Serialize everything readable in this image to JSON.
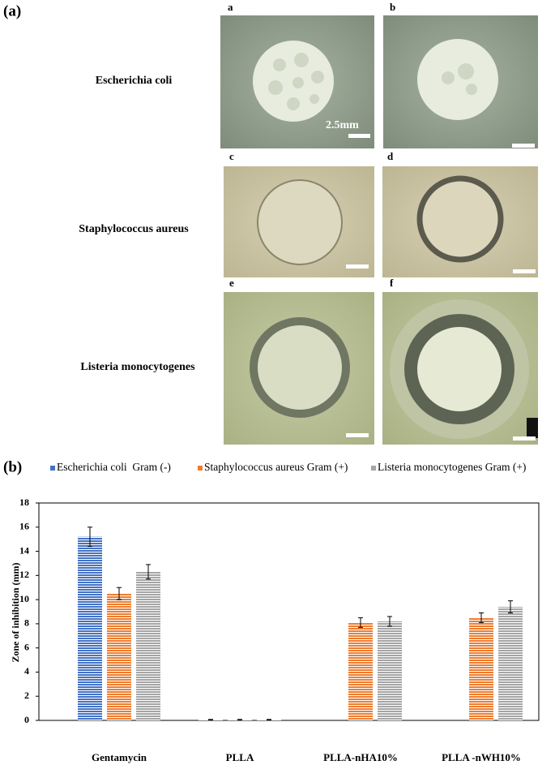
{
  "panel_a": {
    "label": "(a)",
    "rows": [
      {
        "label": "Escherichia coli"
      },
      {
        "label": "Staphylococcus aureus"
      },
      {
        "label": "Listeria monocytogenes"
      }
    ],
    "photo_labels": [
      "a",
      "b",
      "c",
      "d",
      "e",
      "f"
    ],
    "scale_label": "2.5mm"
  },
  "panel_b": {
    "label": "(b)"
  },
  "chart_data": {
    "type": "bar",
    "y_label": "Zone of inhibition (mm)",
    "categories": [
      "Gentamycin",
      "PLLA",
      "PLLA-nHA10%",
      "PLLA -nWH10%"
    ],
    "series": [
      {
        "name": "Escherichia coli  Gram (-)",
        "color": "#4472c4",
        "values": [
          15.2,
          0.05,
          0,
          0
        ],
        "errors": [
          0.8,
          0.03,
          null,
          null
        ]
      },
      {
        "name": "Staphylococcus aureus Gram (+)",
        "color": "#ed7d31",
        "values": [
          10.5,
          0.05,
          8.1,
          8.5
        ],
        "errors": [
          0.5,
          0.03,
          0.4,
          0.4
        ]
      },
      {
        "name": "Listeria monocytogenes Gram (+)",
        "color": "#a5a5a5",
        "values": [
          12.3,
          0.05,
          8.2,
          9.4
        ],
        "errors": [
          0.6,
          0.03,
          0.4,
          0.5
        ]
      }
    ],
    "ylim": [
      0,
      18
    ],
    "yticks": [
      0,
      2,
      4,
      6,
      8,
      10,
      12,
      14,
      16,
      18
    ],
    "grid": false,
    "legend": "top"
  }
}
